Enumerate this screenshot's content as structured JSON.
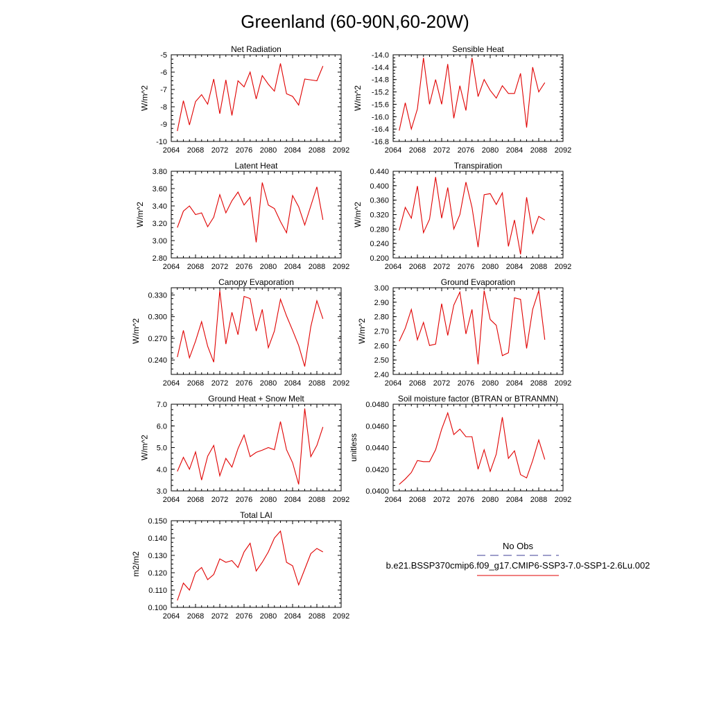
{
  "page": {
    "title": "Greenland (60-90N,60-20W)"
  },
  "colors": {
    "model_line": "#e00000",
    "obs_line": "#3c3c96",
    "axes": "#000000"
  },
  "chart_data": [
    {
      "type": "line",
      "title": "Net Radiation",
      "ylabel": "W/m^2",
      "xlim": [
        2064,
        2092
      ],
      "xticks": [
        "2064",
        "2068",
        "2072",
        "2076",
        "2080",
        "2084",
        "2088",
        "2092"
      ],
      "ylim": [
        -10,
        -5
      ],
      "yticks": [
        "-5",
        "-6",
        "-7",
        "-8",
        "-9",
        "-10"
      ],
      "x": [
        2065,
        2066,
        2067,
        2068,
        2069,
        2070,
        2071,
        2072,
        2073,
        2074,
        2075,
        2076,
        2077,
        2078,
        2079,
        2080,
        2081,
        2082,
        2083,
        2084,
        2085,
        2086,
        2087,
        2088,
        2089
      ],
      "series": [
        {
          "values": [
            -9.4,
            -7.65,
            -9.05,
            -7.7,
            -7.3,
            -7.85,
            -6.4,
            -8.4,
            -6.45,
            -8.5,
            -6.5,
            -6.85,
            -6.0,
            -7.55,
            -6.2,
            -6.7,
            -7.1,
            -5.5,
            -7.25,
            -7.4,
            -7.9,
            -6.4,
            -6.45,
            -6.5,
            -5.65
          ]
        }
      ]
    },
    {
      "type": "line",
      "title": "Sensible Heat",
      "ylabel": "W/m^2",
      "xlim": [
        2064,
        2092
      ],
      "xticks": [
        "2064",
        "2068",
        "2072",
        "2076",
        "2080",
        "2084",
        "2088",
        "2092"
      ],
      "ylim": [
        -16.8,
        -14.0
      ],
      "yticks": [
        "-14.0",
        "-14.4",
        "-14.8",
        "-15.2",
        "-15.6",
        "-16.0",
        "-16.4",
        "-16.8"
      ],
      "x": [
        2065,
        2066,
        2067,
        2068,
        2069,
        2070,
        2071,
        2072,
        2073,
        2074,
        2075,
        2076,
        2077,
        2078,
        2079,
        2080,
        2081,
        2082,
        2083,
        2084,
        2085,
        2086,
        2087,
        2088,
        2089
      ],
      "series": [
        {
          "values": [
            -16.45,
            -15.55,
            -16.4,
            -15.75,
            -14.1,
            -15.6,
            -14.8,
            -15.6,
            -14.3,
            -16.05,
            -15.0,
            -15.8,
            -14.1,
            -15.35,
            -14.8,
            -15.15,
            -15.4,
            -15.0,
            -15.25,
            -15.25,
            -14.6,
            -16.35,
            -14.4,
            -15.2,
            -14.9
          ]
        }
      ]
    },
    {
      "type": "line",
      "title": "Latent Heat",
      "ylabel": "W/m^2",
      "xlim": [
        2064,
        2092
      ],
      "xticks": [
        "2064",
        "2068",
        "2072",
        "2076",
        "2080",
        "2084",
        "2088",
        "2092"
      ],
      "ylim": [
        2.8,
        3.8
      ],
      "yticks": [
        "3.80",
        "3.60",
        "3.40",
        "3.20",
        "3.00",
        "2.80"
      ],
      "x": [
        2065,
        2066,
        2067,
        2068,
        2069,
        2070,
        2071,
        2072,
        2073,
        2074,
        2075,
        2076,
        2077,
        2078,
        2079,
        2080,
        2081,
        2082,
        2083,
        2084,
        2085,
        2086,
        2087,
        2088,
        2089
      ],
      "series": [
        {
          "values": [
            3.15,
            3.34,
            3.4,
            3.3,
            3.32,
            3.16,
            3.27,
            3.53,
            3.32,
            3.46,
            3.56,
            3.41,
            3.5,
            2.98,
            3.67,
            3.41,
            3.37,
            3.22,
            3.09,
            3.52,
            3.39,
            3.18,
            3.4,
            3.62,
            3.24
          ]
        }
      ]
    },
    {
      "type": "line",
      "title": "Transpiration",
      "ylabel": "W/m^2",
      "xlim": [
        2064,
        2092
      ],
      "xticks": [
        "2064",
        "2068",
        "2072",
        "2076",
        "2080",
        "2084",
        "2088",
        "2092"
      ],
      "ylim": [
        0.2,
        0.44
      ],
      "yticks": [
        "0.440",
        "0.400",
        "0.360",
        "0.320",
        "0.280",
        "0.240",
        "0.200"
      ],
      "x": [
        2065,
        2066,
        2067,
        2068,
        2069,
        2070,
        2071,
        2072,
        2073,
        2074,
        2075,
        2076,
        2077,
        2078,
        2079,
        2080,
        2081,
        2082,
        2083,
        2084,
        2085,
        2086,
        2087,
        2088,
        2089
      ],
      "series": [
        {
          "values": [
            0.276,
            0.34,
            0.31,
            0.399,
            0.27,
            0.307,
            0.424,
            0.31,
            0.395,
            0.28,
            0.32,
            0.41,
            0.34,
            0.23,
            0.375,
            0.378,
            0.348,
            0.38,
            0.232,
            0.305,
            0.21,
            0.368,
            0.268,
            0.315,
            0.305
          ]
        }
      ]
    },
    {
      "type": "line",
      "title": "Canopy Evaporation",
      "ylabel": "W/m^2",
      "xlim": [
        2064,
        2092
      ],
      "xticks": [
        "2064",
        "2068",
        "2072",
        "2076",
        "2080",
        "2084",
        "2088",
        "2092"
      ],
      "ylim": [
        0.22,
        0.34
      ],
      "yticks": [
        "0.330",
        "0.300",
        "0.270",
        "0.240"
      ],
      "ytick_values": [
        0.33,
        0.3,
        0.27,
        0.24
      ],
      "x": [
        2065,
        2066,
        2067,
        2068,
        2069,
        2070,
        2071,
        2072,
        2073,
        2074,
        2075,
        2076,
        2077,
        2078,
        2079,
        2080,
        2081,
        2082,
        2083,
        2084,
        2085,
        2086,
        2087,
        2088,
        2089
      ],
      "series": [
        {
          "values": [
            0.244,
            0.281,
            0.243,
            0.266,
            0.293,
            0.259,
            0.237,
            0.336,
            0.262,
            0.306,
            0.275,
            0.328,
            0.325,
            0.28,
            0.31,
            0.257,
            0.28,
            0.324,
            0.301,
            0.281,
            0.26,
            0.231,
            0.286,
            0.322,
            0.297
          ]
        }
      ]
    },
    {
      "type": "line",
      "title": "Ground Evaporation",
      "ylabel": "W/m^2",
      "xlim": [
        2064,
        2092
      ],
      "xticks": [
        "2064",
        "2068",
        "2072",
        "2076",
        "2080",
        "2084",
        "2088",
        "2092"
      ],
      "ylim": [
        2.4,
        3.0
      ],
      "yticks": [
        "3.00",
        "2.90",
        "2.80",
        "2.70",
        "2.60",
        "2.50",
        "2.40"
      ],
      "x": [
        2065,
        2066,
        2067,
        2068,
        2069,
        2070,
        2071,
        2072,
        2073,
        2074,
        2075,
        2076,
        2077,
        2078,
        2079,
        2080,
        2081,
        2082,
        2083,
        2084,
        2085,
        2086,
        2087,
        2088,
        2089
      ],
      "series": [
        {
          "values": [
            2.63,
            2.72,
            2.85,
            2.64,
            2.76,
            2.6,
            2.61,
            2.89,
            2.67,
            2.88,
            2.97,
            2.68,
            2.85,
            2.47,
            2.98,
            2.78,
            2.74,
            2.53,
            2.55,
            2.93,
            2.92,
            2.58,
            2.85,
            2.98,
            2.64
          ]
        }
      ]
    },
    {
      "type": "line",
      "title": "Ground Heat + Snow Melt",
      "ylabel": "W/m^2",
      "xlim": [
        2064,
        2092
      ],
      "xticks": [
        "2064",
        "2068",
        "2072",
        "2076",
        "2080",
        "2084",
        "2088",
        "2092"
      ],
      "ylim": [
        3.0,
        7.0
      ],
      "yticks": [
        "7.0",
        "6.0",
        "5.0",
        "4.0",
        "3.0"
      ],
      "x": [
        2065,
        2066,
        2067,
        2068,
        2069,
        2070,
        2071,
        2072,
        2073,
        2074,
        2075,
        2076,
        2077,
        2078,
        2079,
        2080,
        2081,
        2082,
        2083,
        2084,
        2085,
        2086,
        2087,
        2088,
        2089
      ],
      "series": [
        {
          "values": [
            3.9,
            4.55,
            4.0,
            4.8,
            3.5,
            4.6,
            5.1,
            3.7,
            4.5,
            4.1,
            4.95,
            5.58,
            4.58,
            4.78,
            4.88,
            5.0,
            4.9,
            6.2,
            4.9,
            4.3,
            3.3,
            6.8,
            4.58,
            5.1,
            5.95
          ]
        }
      ]
    },
    {
      "type": "line",
      "title": "Soil moisture factor (BTRAN or BTRANMN)",
      "ylabel": "unitless",
      "xlim": [
        2064,
        2092
      ],
      "xticks": [
        "2064",
        "2068",
        "2072",
        "2076",
        "2080",
        "2084",
        "2088",
        "2092"
      ],
      "ylim": [
        0.04,
        0.048
      ],
      "yticks": [
        "0.0480",
        "0.0460",
        "0.0440",
        "0.0420",
        "0.0400"
      ],
      "x": [
        2065,
        2066,
        2067,
        2068,
        2069,
        2070,
        2071,
        2072,
        2073,
        2074,
        2075,
        2076,
        2077,
        2078,
        2079,
        2080,
        2081,
        2082,
        2083,
        2084,
        2085,
        2086,
        2087,
        2088,
        2089
      ],
      "series": [
        {
          "values": [
            0.0406,
            0.0411,
            0.0417,
            0.0428,
            0.0427,
            0.0427,
            0.0438,
            0.0457,
            0.0472,
            0.0452,
            0.0457,
            0.045,
            0.045,
            0.042,
            0.0438,
            0.0418,
            0.0434,
            0.0468,
            0.043,
            0.0437,
            0.0415,
            0.0412,
            0.0428,
            0.0447,
            0.0429
          ]
        }
      ]
    },
    {
      "type": "line",
      "title": "Total LAI",
      "ylabel": "m2/m2",
      "xlim": [
        2064,
        2092
      ],
      "xticks": [
        "2064",
        "2068",
        "2072",
        "2076",
        "2080",
        "2084",
        "2088",
        "2092"
      ],
      "ylim": [
        0.1,
        0.15
      ],
      "yticks": [
        "0.150",
        "0.140",
        "0.130",
        "0.120",
        "0.110",
        "0.100"
      ],
      "x": [
        2065,
        2066,
        2067,
        2068,
        2069,
        2070,
        2071,
        2072,
        2073,
        2074,
        2075,
        2076,
        2077,
        2078,
        2079,
        2080,
        2081,
        2082,
        2083,
        2084,
        2085,
        2086,
        2087,
        2088,
        2089
      ],
      "series": [
        {
          "values": [
            0.104,
            0.114,
            0.11,
            0.12,
            0.123,
            0.116,
            0.119,
            0.128,
            0.126,
            0.127,
            0.123,
            0.132,
            0.137,
            0.121,
            0.126,
            0.132,
            0.14,
            0.144,
            0.126,
            0.124,
            0.113,
            0.122,
            0.131,
            0.134,
            0.132
          ]
        }
      ]
    }
  ],
  "legend": {
    "obs_label": "No Obs",
    "model_label": "b.e21.BSSP370cmip6.f09_g17.CMIP6-SSP3-7.0-SSP1-2.6Lu.002"
  }
}
